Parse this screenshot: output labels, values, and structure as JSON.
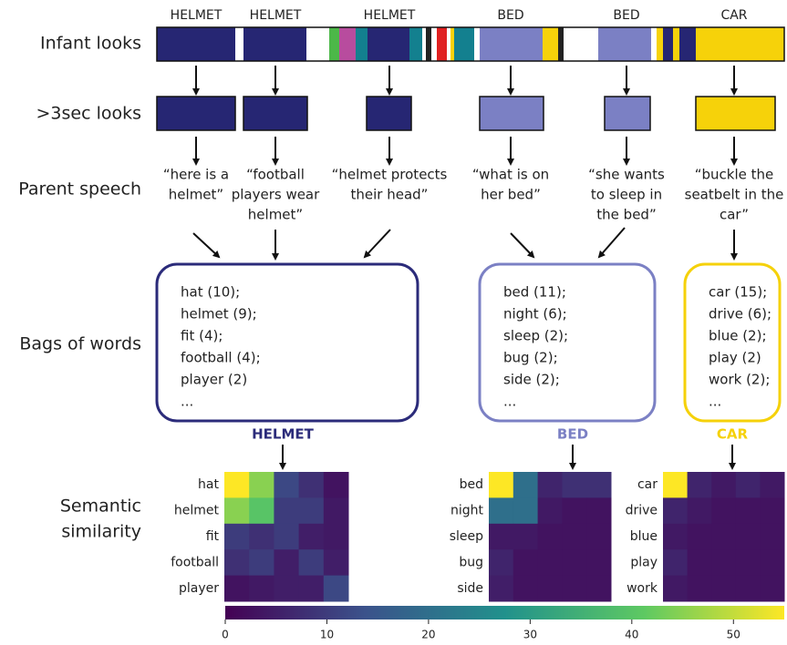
{
  "row_labels": [
    [
      "Infant looks"
    ],
    [
      ">3sec looks"
    ],
    [
      "Parent speech"
    ],
    [
      "Bags of words"
    ],
    [
      "Semantic",
      "similarity"
    ]
  ],
  "top_labels": [
    "HELMET",
    "HELMET",
    "HELMET",
    "BED",
    "BED",
    "CAR"
  ],
  "speech": [
    [
      "“here is a",
      "helmet”"
    ],
    [
      "“football",
      "players wear",
      "helmet”"
    ],
    [
      "“helmet protects",
      "their head”"
    ],
    [
      "“what is on",
      "her bed”"
    ],
    [
      "“she wants",
      "to sleep in",
      "the bed”"
    ],
    [
      "“buckle the",
      "seatbelt in the",
      "car”"
    ]
  ],
  "bags": [
    {
      "name": "HELMET",
      "color": "#2b2b7a",
      "words": [
        "hat (10);",
        "helmet (9);",
        "fit (4);",
        "football (4);",
        "player (2)",
        "..."
      ]
    },
    {
      "name": "BED",
      "color": "#7b80c4",
      "words": [
        "bed (11);",
        "night (6);",
        "sleep (2);",
        "bug (2);",
        "side (2);",
        "..."
      ]
    },
    {
      "name": "CAR",
      "color": "#f5d10a",
      "words": [
        "car (15);",
        "drive (6);",
        "blue (2);",
        "play (2)",
        "work (2);",
        "..."
      ]
    }
  ],
  "heatmaps": [
    {
      "labels": [
        "hat",
        "helmet",
        "fit",
        "football",
        "player"
      ],
      "values": [
        [
          55,
          45,
          12,
          8,
          3
        ],
        [
          45,
          40,
          10,
          10,
          4
        ],
        [
          10,
          8,
          10,
          5,
          4
        ],
        [
          8,
          10,
          5,
          10,
          5
        ],
        [
          3,
          4,
          5,
          5,
          12
        ]
      ]
    },
    {
      "labels": [
        "bed",
        "night",
        "sleep",
        "bug",
        "side"
      ],
      "values": [
        [
          55,
          20,
          6,
          8,
          8
        ],
        [
          20,
          20,
          4,
          3,
          3
        ],
        [
          4,
          4,
          3,
          3,
          3
        ],
        [
          6,
          3,
          3,
          3,
          3
        ],
        [
          5,
          3,
          3,
          3,
          3
        ]
      ]
    },
    {
      "labels": [
        "car",
        "drive",
        "blue",
        "play",
        "work"
      ],
      "values": [
        [
          55,
          6,
          4,
          6,
          4
        ],
        [
          6,
          4,
          3,
          3,
          3
        ],
        [
          4,
          3,
          3,
          3,
          3
        ],
        [
          6,
          3,
          3,
          3,
          3
        ],
        [
          4,
          3,
          3,
          3,
          3
        ]
      ]
    }
  ],
  "colorbar": {
    "range": [
      0,
      55
    ],
    "ticks": [
      0,
      10,
      20,
      30,
      40,
      50
    ]
  }
}
